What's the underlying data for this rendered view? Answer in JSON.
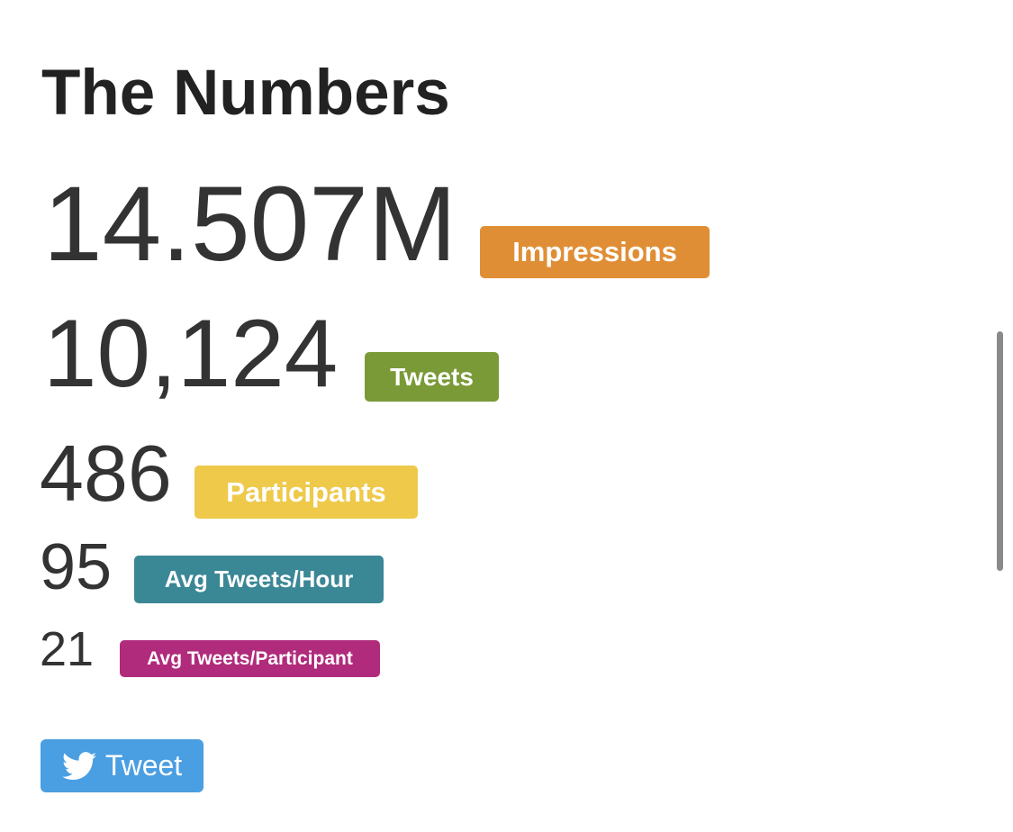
{
  "header": {
    "title": "The Numbers"
  },
  "stats": [
    {
      "value": "14.507M",
      "label": "Impressions"
    },
    {
      "value": "10,124",
      "label": "Tweets"
    },
    {
      "value": "486",
      "label": "Participants"
    },
    {
      "value": "95",
      "label": "Avg Tweets/Hour"
    },
    {
      "value": "21",
      "label": "Avg Tweets/Participant"
    }
  ],
  "button": {
    "label": "Tweet"
  }
}
